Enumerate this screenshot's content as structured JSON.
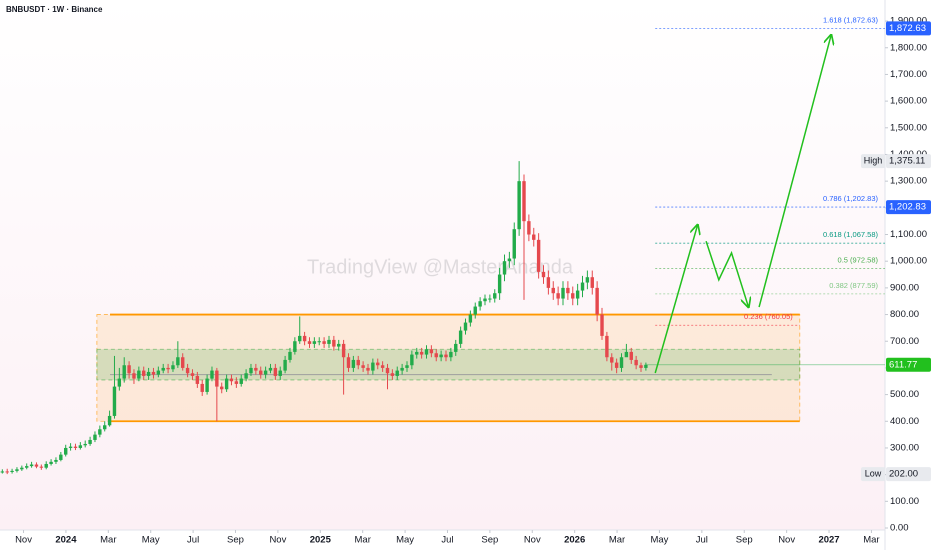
{
  "chart_data": {
    "type": "candlestick",
    "title": "BNBUSDT · 1W · Binance",
    "watermark": "TradingView @MasterAnanda",
    "up_color": "#22ab4a",
    "down_color": "#e5484d",
    "x": [
      -3,
      -2.77,
      -2.54,
      -2.31,
      -2.08,
      -1.85,
      -1.62,
      -1.39,
      -1.16,
      -0.93,
      -0.7,
      -0.47,
      -0.24,
      -0.01,
      0.22,
      0.45,
      0.68,
      0.91,
      1.14,
      1.37,
      1.6,
      1.83,
      2.06,
      2.29,
      2.52,
      2.75,
      2.98,
      3.21,
      3.44,
      3.67,
      3.9,
      4.13,
      4.36,
      4.59,
      4.82,
      5.05,
      5.28,
      5.51,
      5.74,
      5.97,
      6.2,
      6.43,
      6.66,
      6.89,
      7.12,
      7.35,
      7.58,
      7.81,
      8.04,
      8.27,
      8.5,
      8.73,
      8.96,
      9.19,
      9.42,
      9.65,
      9.88,
      10.11,
      10.34,
      10.57,
      10.8,
      11.03,
      11.26,
      11.49,
      11.72,
      11.95,
      12.18,
      12.41,
      12.64,
      12.87,
      13.1,
      13.33,
      13.56,
      13.79,
      14.02,
      14.25,
      14.48,
      14.71,
      14.94,
      15.17,
      15.4,
      15.63,
      15.86,
      16.09,
      16.32,
      16.55,
      16.78,
      17.01,
      17.24,
      17.47,
      17.7,
      17.93,
      18.16,
      18.39,
      18.62,
      18.85,
      19.08,
      19.31,
      19.54,
      19.77,
      20,
      20.23,
      20.46,
      20.69,
      20.92,
      21.15,
      21.38,
      21.61,
      21.84,
      22.07,
      22.3,
      22.53,
      22.76,
      22.99,
      23.22,
      23.45,
      23.68,
      23.91,
      24.14,
      24.37,
      24.6,
      24.83,
      25.06,
      25.29,
      25.52,
      25.75,
      25.98,
      26.21,
      26.44,
      26.67,
      26.9,
      27.13,
      27.36
    ],
    "open": [
      208,
      212,
      210,
      214,
      220,
      226,
      232,
      238,
      230,
      226,
      240,
      248,
      255,
      275,
      300,
      305,
      300,
      310,
      315,
      330,
      350,
      370,
      385,
      420,
      530,
      560,
      610,
      580,
      560,
      590,
      570,
      585,
      575,
      590,
      600,
      595,
      610,
      640,
      600,
      580,
      570,
      540,
      510,
      560,
      590,
      530,
      520,
      560,
      550,
      540,
      560,
      580,
      600,
      590,
      575,
      590,
      600,
      570,
      590,
      630,
      660,
      700,
      720,
      700,
      690,
      700,
      700,
      690,
      705,
      680,
      690,
      640,
      600,
      630,
      610,
      600,
      590,
      620,
      610,
      600,
      580,
      570,
      590,
      600,
      610,
      650,
      660,
      650,
      670,
      655,
      640,
      650,
      640,
      660,
      690,
      740,
      770,
      800,
      830,
      850,
      860,
      860,
      880,
      950,
      1000,
      1010,
      1120,
      1300,
      1150,
      1100,
      1080,
      960,
      940,
      900,
      880,
      860,
      900,
      880,
      860,
      890,
      920,
      940,
      900,
      800,
      720,
      640,
      620,
      600,
      640,
      660,
      630,
      610,
      600
    ],
    "high": [
      220,
      222,
      222,
      228,
      234,
      242,
      248,
      246,
      238,
      250,
      258,
      265,
      285,
      312,
      318,
      316,
      322,
      328,
      342,
      362,
      384,
      400,
      440,
      645,
      600,
      640,
      625,
      595,
      605,
      605,
      600,
      600,
      605,
      615,
      615,
      625,
      700,
      655,
      615,
      595,
      585,
      555,
      575,
      605,
      600,
      545,
      575,
      575,
      565,
      575,
      595,
      615,
      615,
      605,
      605,
      615,
      615,
      605,
      645,
      675,
      715,
      793,
      735,
      715,
      715,
      715,
      715,
      720,
      720,
      705,
      705,
      655,
      645,
      645,
      625,
      615,
      635,
      635,
      625,
      615,
      595,
      605,
      615,
      625,
      665,
      675,
      675,
      685,
      685,
      670,
      665,
      665,
      675,
      705,
      755,
      785,
      815,
      845,
      865,
      875,
      875,
      895,
      975,
      1025,
      1035,
      1145,
      1375.11,
      1325,
      1175,
      1125,
      1105,
      985,
      965,
      925,
      905,
      925,
      925,
      905,
      915,
      945,
      965,
      965,
      925,
      825,
      735,
      655,
      635,
      655,
      690,
      675,
      645,
      620,
      620
    ],
    "low": [
      204,
      202,
      204,
      208,
      214,
      220,
      226,
      224,
      218,
      220,
      234,
      240,
      250,
      268,
      290,
      292,
      294,
      302,
      308,
      322,
      340,
      362,
      380,
      410,
      515,
      545,
      560,
      540,
      550,
      555,
      555,
      560,
      565,
      580,
      580,
      585,
      600,
      590,
      565,
      555,
      525,
      495,
      500,
      550,
      400,
      505,
      510,
      535,
      525,
      530,
      550,
      570,
      575,
      560,
      560,
      580,
      555,
      555,
      580,
      620,
      650,
      690,
      685,
      675,
      675,
      685,
      675,
      675,
      665,
      665,
      500,
      585,
      585,
      595,
      585,
      575,
      575,
      595,
      585,
      520,
      555,
      555,
      575,
      585,
      595,
      635,
      635,
      635,
      640,
      625,
      625,
      625,
      625,
      645,
      675,
      725,
      755,
      785,
      815,
      835,
      845,
      845,
      855,
      925,
      975,
      985,
      1095,
      855,
      1075,
      1055,
      935,
      915,
      875,
      855,
      835,
      835,
      855,
      835,
      835,
      865,
      895,
      875,
      775,
      705,
      625,
      590,
      580,
      585,
      645,
      615,
      595,
      585,
      590
    ],
    "close": [
      212,
      210,
      214,
      220,
      226,
      232,
      238,
      230,
      226,
      240,
      248,
      255,
      275,
      300,
      305,
      300,
      310,
      315,
      330,
      350,
      370,
      385,
      420,
      530,
      560,
      610,
      580,
      560,
      590,
      570,
      585,
      575,
      590,
      600,
      595,
      610,
      640,
      600,
      580,
      570,
      540,
      510,
      560,
      590,
      530,
      520,
      560,
      550,
      540,
      560,
      580,
      600,
      590,
      575,
      590,
      600,
      570,
      590,
      630,
      660,
      700,
      720,
      700,
      690,
      700,
      700,
      690,
      705,
      680,
      690,
      640,
      600,
      630,
      610,
      600,
      590,
      620,
      610,
      600,
      580,
      570,
      590,
      600,
      610,
      650,
      660,
      650,
      670,
      655,
      640,
      650,
      640,
      660,
      690,
      740,
      770,
      800,
      830,
      850,
      860,
      860,
      880,
      950,
      1000,
      1010,
      1120,
      1300,
      1150,
      1100,
      1080,
      960,
      940,
      900,
      880,
      860,
      900,
      880,
      860,
      890,
      920,
      940,
      900,
      800,
      720,
      640,
      620,
      600,
      640,
      660,
      630,
      610,
      600,
      611.77
    ],
    "xlim": [
      -3.11,
      38.64
    ],
    "xticks": [
      {
        "value": -2,
        "label": "Nov"
      },
      {
        "value": 0,
        "label": "2024"
      },
      {
        "value": 2,
        "label": "Mar"
      },
      {
        "value": 4,
        "label": "May"
      },
      {
        "value": 6,
        "label": "Jul"
      },
      {
        "value": 8,
        "label": "Sep"
      },
      {
        "value": 10,
        "label": "Nov"
      },
      {
        "value": 12,
        "label": "2025"
      },
      {
        "value": 14,
        "label": "Mar"
      },
      {
        "value": 16,
        "label": "May"
      },
      {
        "value": 18,
        "label": "Jul"
      },
      {
        "value": 20,
        "label": "Sep"
      },
      {
        "value": 22,
        "label": "Nov"
      },
      {
        "value": 24,
        "label": "2026"
      },
      {
        "value": 26,
        "label": "Mar"
      },
      {
        "value": 28,
        "label": "May"
      },
      {
        "value": 30,
        "label": "Jul"
      },
      {
        "value": 32,
        "label": "Sep"
      },
      {
        "value": 34,
        "label": "Nov"
      },
      {
        "value": 36,
        "label": "2027"
      },
      {
        "value": 38,
        "label": "Mar"
      }
    ],
    "ylim": [
      -7.5,
      1979
    ],
    "yticks": [
      {
        "value": 0,
        "label": "0.00"
      },
      {
        "value": 100,
        "label": "100.00"
      },
      {
        "value": 200,
        "label": "200.00"
      },
      {
        "value": 300,
        "label": "300.00"
      },
      {
        "value": 400,
        "label": "400.00"
      },
      {
        "value": 500,
        "label": "500.00"
      },
      {
        "value": 600,
        "label": "600.00"
      },
      {
        "value": 700,
        "label": "700.00"
      },
      {
        "value": 800,
        "label": "800.00"
      },
      {
        "value": 900,
        "label": "900.00"
      },
      {
        "value": 1000,
        "label": "1,000.00"
      },
      {
        "value": 1100,
        "label": "1,100.00"
      },
      {
        "value": 1200,
        "label": "1,200.00"
      },
      {
        "value": 1300,
        "label": "1,300.00"
      },
      {
        "value": 1400,
        "label": "1,400.00"
      },
      {
        "value": 1500,
        "label": "1,500.00"
      },
      {
        "value": 1600,
        "label": "1,600.00"
      },
      {
        "value": 1700,
        "label": "1,700.00"
      },
      {
        "value": 1800,
        "label": "1,800.00"
      },
      {
        "value": 1900,
        "label": "1,900.00"
      }
    ],
    "grid": false,
    "zones": [
      {
        "xlim": [
          1.46,
          34.62
        ],
        "ylim": [
          400,
          800
        ],
        "color": "#ff9800"
      },
      {
        "xlim": [
          1.46,
          34.62
        ],
        "ylim": [
          555,
          670
        ],
        "color": "#4caf50"
      }
    ],
    "levels": [
      {
        "value": 800,
        "xlim": [
          2.08,
          34.62
        ],
        "color": "#ff9800"
      },
      {
        "value": 400,
        "xlim": [
          2.08,
          34.62
        ],
        "color": "#ff9800"
      },
      {
        "value": 575,
        "xlim": [
          2.08,
          33.3
        ],
        "color": "#9e9e9e"
      }
    ],
    "fib_levels": [
      {
        "value": 1872.63,
        "label": "1.618 (1,872.63)",
        "color": "#2962ff",
        "xlim": [
          27.8,
          38.64
        ]
      },
      {
        "value": 1202.83,
        "label": "0.786 (1,202.83)",
        "color": "#2962ff",
        "xlim": [
          27.8,
          38.64
        ]
      },
      {
        "value": 1067.58,
        "label": "0.618 (1,067.58)",
        "color": "#089981",
        "xlim": [
          27.8,
          38.64
        ]
      },
      {
        "value": 972.58,
        "label": "0.5 (972.58)",
        "color": "#4caf50",
        "xlim": [
          27.8,
          38.64
        ]
      },
      {
        "value": 877.59,
        "label": "0.382 (877.59)",
        "color": "#81c784",
        "xlim": [
          27.8,
          38.64
        ]
      },
      {
        "value": 760.05,
        "label": "0.236 (760.05)",
        "color": "#f23645",
        "xlim": [
          27.8,
          34.62
        ]
      }
    ],
    "price_labels": [
      {
        "value": 1872.63,
        "label": "1,872.63",
        "color": "#2962ff",
        "text_color": "#ffffff"
      },
      {
        "value": 1202.83,
        "label": "1,202.83",
        "color": "#2962ff",
        "text_color": "#ffffff"
      },
      {
        "value": 1375.11,
        "label": "1,375.11",
        "tag": "High",
        "color": "#e8eaee",
        "text_color": "#131722"
      },
      {
        "value": 202,
        "label": "202.00",
        "tag": "Low",
        "color": "#e8eaee",
        "text_color": "#131722"
      },
      {
        "value": 611.77,
        "label": "611.77",
        "color": "#22c01e",
        "text_color": "#ffffff"
      }
    ],
    "projection": {
      "color": "#22c01e",
      "segments": [
        {
          "x": [
            27.8,
            29.8
          ],
          "values": [
            581,
            1136
          ]
        },
        {
          "x": [
            30.2,
            30.8,
            31.4,
            32.2
          ],
          "values": [
            1075,
            930,
            1031,
            828
          ]
        },
        {
          "x": [
            32.7,
            36.1
          ],
          "values": [
            828,
            1848
          ]
        }
      ]
    }
  }
}
